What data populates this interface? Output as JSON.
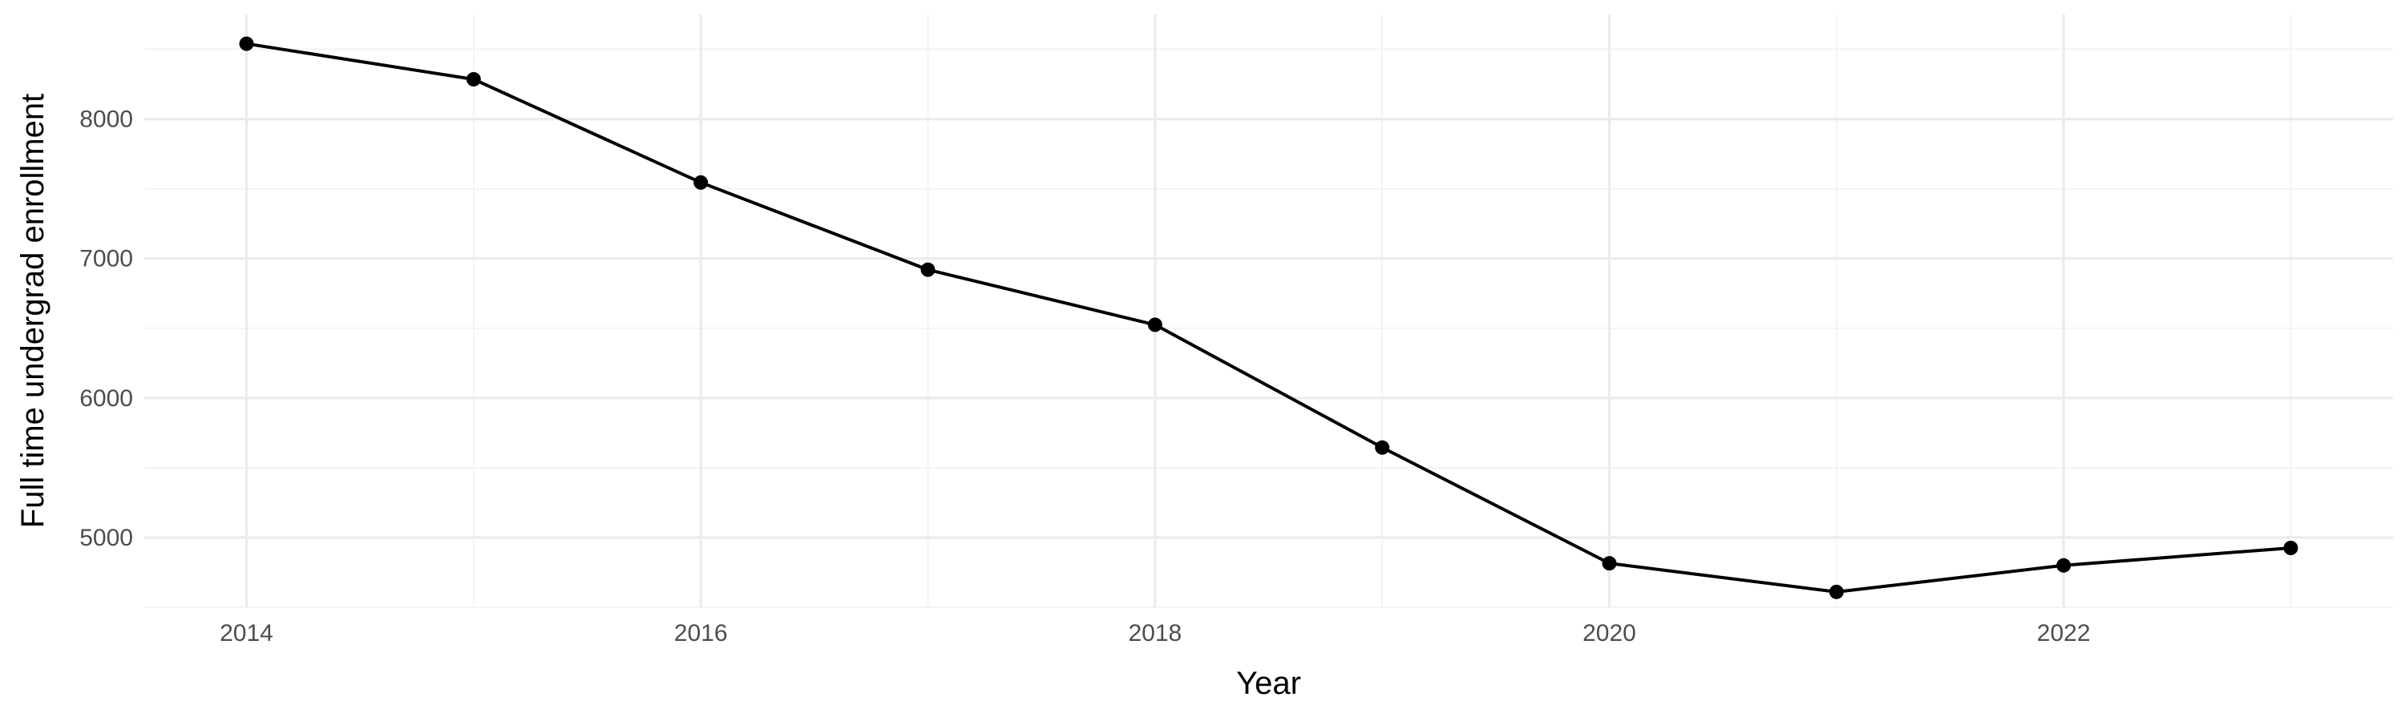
{
  "chart_data": {
    "type": "line",
    "title": "",
    "xlabel": "Year",
    "ylabel": "Full time undergrad enrollment",
    "x": [
      2014,
      2015,
      2016,
      2017,
      2018,
      2019,
      2020,
      2021,
      2022,
      2023
    ],
    "series": [
      {
        "values": [
          8540,
          8285,
          7545,
          6920,
          6525,
          5645,
          4815,
          4610,
          4800,
          4925
        ]
      }
    ],
    "xlim": [
      2013.55,
      2023.45
    ],
    "ylim": [
      4500,
      8750
    ],
    "x_ticks": [
      2014,
      2016,
      2018,
      2020,
      2022
    ],
    "x_tick_labels": [
      "2014",
      "2016",
      "2018",
      "2020",
      "2022"
    ],
    "y_ticks": [
      5000,
      6000,
      7000,
      8000
    ],
    "y_tick_labels": [
      "5000",
      "6000",
      "7000",
      "8000"
    ],
    "grid": true,
    "legend": "none",
    "colors": {
      "line": "#000000",
      "grid": "#ebebeb",
      "tick_text": "#4d4d4d"
    }
  }
}
